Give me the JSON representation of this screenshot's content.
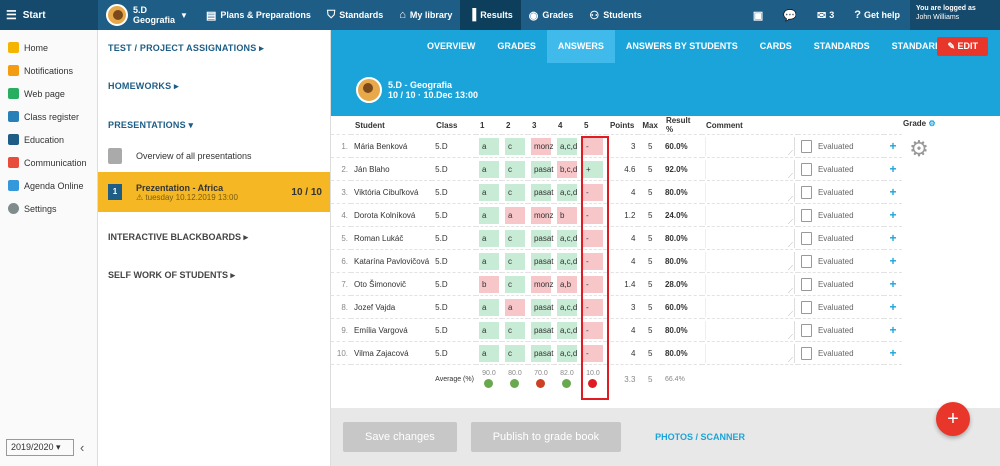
{
  "topbar": {
    "start_label": "Start",
    "class_name": "5.D",
    "class_subject": "Geografia",
    "nav": [
      {
        "label": "Plans & Preparations",
        "active": false
      },
      {
        "label": "Standards",
        "active": false
      },
      {
        "label": "My library",
        "active": false
      },
      {
        "label": "Results",
        "active": true
      },
      {
        "label": "Grades",
        "active": false
      },
      {
        "label": "Students",
        "active": false
      }
    ],
    "mail_count": "3",
    "help_label": "Get help",
    "logged_label": "You are logged as",
    "user_name": "John Williams"
  },
  "leftnav": {
    "items": [
      "Home",
      "Notifications",
      "Web page",
      "Class register",
      "Education",
      "Communication",
      "Agenda Online",
      "Settings"
    ],
    "year": "2019/2020"
  },
  "midpanel": {
    "test_assignations": "TEST / PROJECT ASSIGNATIONS",
    "homeworks": "HOMEWORKS",
    "presentations": "PRESENTATIONS",
    "overview_label": "Overview of all presentations",
    "active_item": {
      "num": "1",
      "title": "Prezentation - Africa",
      "date": "tuesday 10.12.2019 13:00",
      "count": "10 / 10"
    },
    "interactive": "INTERACTIVE BLACKBOARDS",
    "selfwork": "SELF WORK OF STUDENTS"
  },
  "tabs": [
    {
      "label": "OVERVIEW",
      "active": false
    },
    {
      "label": "GRADES",
      "active": false
    },
    {
      "label": "ANSWERS",
      "active": true
    },
    {
      "label": "ANSWERS BY STUDENTS",
      "active": false
    },
    {
      "label": "CARDS",
      "active": false
    },
    {
      "label": "STANDARDS",
      "active": false
    },
    {
      "label": "STANDARDS TREE",
      "active": false
    }
  ],
  "edit_label": "EDIT",
  "header": {
    "title": "5.D - Geografia",
    "subtitle": "10 / 10 · 10.Dec 13:00"
  },
  "table": {
    "headers": {
      "student": "Student",
      "class": "Class",
      "q1": "1",
      "q2": "2",
      "q3": "3",
      "q4": "4",
      "q5": "5",
      "points": "Points",
      "max": "Max",
      "result": "Result %",
      "comment": "Comment",
      "grade": "Grade"
    },
    "rows": [
      {
        "n": "1.",
        "name": "Mária Benková",
        "class": "5.D",
        "a1": "a",
        "a2": "c",
        "a3": "monz",
        "a4": "a,c,d",
        "a5": "-",
        "c1": "g",
        "c2": "g",
        "c3": "r",
        "c4": "g",
        "c5": "r",
        "points": "3",
        "max": "5",
        "result": "60.0%",
        "status": "Evaluated"
      },
      {
        "n": "2.",
        "name": "Ján Blaho",
        "class": "5.D",
        "a1": "a",
        "a2": "c",
        "a3": "pasat",
        "a4": "b,c,d",
        "a5": "+",
        "c1": "g",
        "c2": "g",
        "c3": "g",
        "c4": "r",
        "c5": "g",
        "points": "4.6",
        "max": "5",
        "result": "92.0%",
        "status": "Evaluated"
      },
      {
        "n": "3.",
        "name": "Viktória Cibuľková",
        "class": "5.D",
        "a1": "a",
        "a2": "c",
        "a3": "pasat",
        "a4": "a,c,d",
        "a5": "-",
        "c1": "g",
        "c2": "g",
        "c3": "g",
        "c4": "g",
        "c5": "r",
        "points": "4",
        "max": "5",
        "result": "80.0%",
        "status": "Evaluated"
      },
      {
        "n": "4.",
        "name": "Dorota Kolníková",
        "class": "5.D",
        "a1": "a",
        "a2": "a",
        "a3": "monz",
        "a4": "b",
        "a5": "-",
        "c1": "g",
        "c2": "r",
        "c3": "r",
        "c4": "r",
        "c5": "r",
        "points": "1.2",
        "max": "5",
        "result": "24.0%",
        "status": "Evaluated"
      },
      {
        "n": "5.",
        "name": "Roman Lukáč",
        "class": "5.D",
        "a1": "a",
        "a2": "c",
        "a3": "pasat",
        "a4": "a,c,d",
        "a5": "-",
        "c1": "g",
        "c2": "g",
        "c3": "g",
        "c4": "g",
        "c5": "r",
        "points": "4",
        "max": "5",
        "result": "80.0%",
        "status": "Evaluated"
      },
      {
        "n": "6.",
        "name": "Katarína Pavlovičová",
        "class": "5.D",
        "a1": "a",
        "a2": "c",
        "a3": "pasat",
        "a4": "a,c,d",
        "a5": "-",
        "c1": "g",
        "c2": "g",
        "c3": "g",
        "c4": "g",
        "c5": "r",
        "points": "4",
        "max": "5",
        "result": "80.0%",
        "status": "Evaluated"
      },
      {
        "n": "7.",
        "name": "Oto Šimonovič",
        "class": "5.D",
        "a1": "b",
        "a2": "c",
        "a3": "monz",
        "a4": "a,b",
        "a5": "-",
        "c1": "r",
        "c2": "g",
        "c3": "r",
        "c4": "r",
        "c5": "r",
        "points": "1.4",
        "max": "5",
        "result": "28.0%",
        "status": "Evaluated"
      },
      {
        "n": "8.",
        "name": "Jozef Vajda",
        "class": "5.D",
        "a1": "a",
        "a2": "a",
        "a3": "pasat",
        "a4": "a,c,d",
        "a5": "-",
        "c1": "g",
        "c2": "r",
        "c3": "g",
        "c4": "g",
        "c5": "r",
        "points": "3",
        "max": "5",
        "result": "60.0%",
        "status": "Evaluated"
      },
      {
        "n": "9.",
        "name": "Emília Vargová",
        "class": "5.D",
        "a1": "a",
        "a2": "c",
        "a3": "pasat",
        "a4": "a,c,d",
        "a5": "-",
        "c1": "g",
        "c2": "g",
        "c3": "g",
        "c4": "g",
        "c5": "r",
        "points": "4",
        "max": "5",
        "result": "80.0%",
        "status": "Evaluated"
      },
      {
        "n": "10.",
        "name": "Vilma Zajacová",
        "class": "5.D",
        "a1": "a",
        "a2": "c",
        "a3": "pasat",
        "a4": "a,c,d",
        "a5": "-",
        "c1": "g",
        "c2": "g",
        "c3": "g",
        "c4": "g",
        "c5": "r",
        "points": "4",
        "max": "5",
        "result": "80.0%",
        "status": "Evaluated"
      }
    ],
    "average_label": "Average (%)",
    "averages": [
      "90.0",
      "80.0",
      "70.0",
      "82.0",
      "10.0"
    ],
    "avg_points": "3.3",
    "avg_max": "5",
    "avg_result": "66.4%"
  },
  "footer": {
    "save": "Save changes",
    "publish": "Publish to grade book",
    "photos": "PHOTOS / SCANNER"
  },
  "colors": {
    "topbar": "#1d5d86",
    "accent": "#1ba4d9",
    "active": "#f5b824",
    "correct": "#c8ebd5",
    "wrong": "#f7c6c9",
    "highlight": "#e01b22",
    "fab": "#e8362a"
  }
}
